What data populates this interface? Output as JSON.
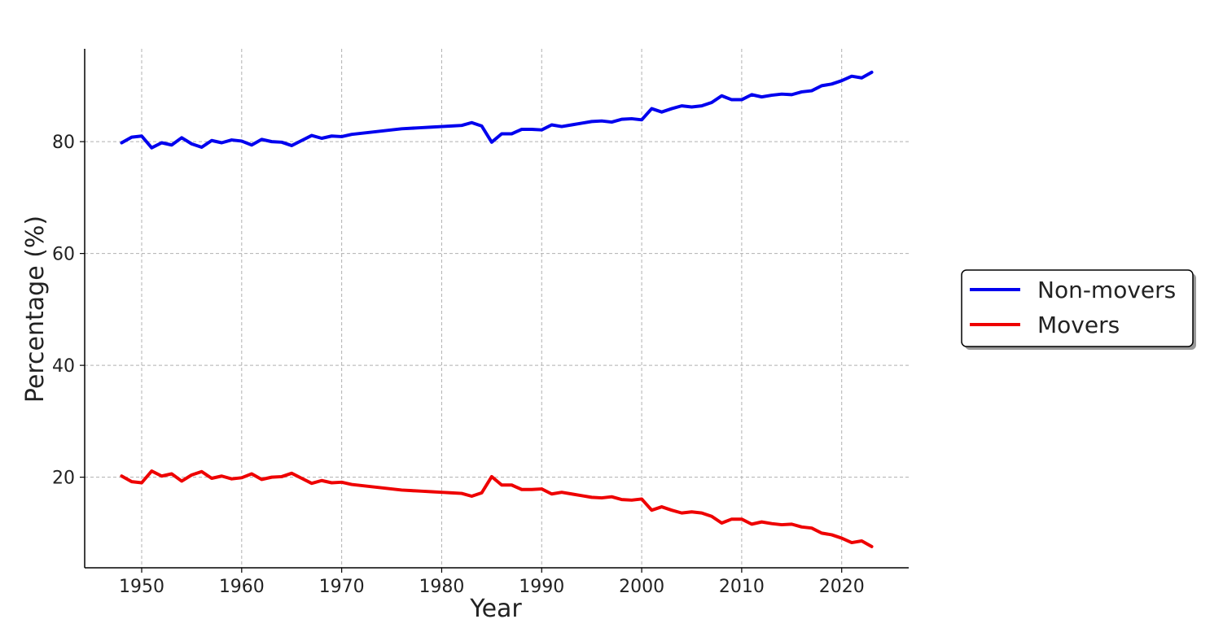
{
  "chart_data": {
    "type": "line",
    "title": "",
    "xlabel": "Year",
    "ylabel": "Percentage (%)",
    "xlim": [
      1944.3,
      2026.7
    ],
    "ylim": [
      3.8,
      96.6
    ],
    "xticks": [
      1950,
      1960,
      1970,
      1980,
      1990,
      2000,
      2010,
      2020
    ],
    "yticks": [
      20,
      40,
      60,
      80
    ],
    "grid": true,
    "legend_position": "center-right",
    "x": [
      1948,
      1949,
      1950,
      1951,
      1952,
      1953,
      1954,
      1955,
      1956,
      1957,
      1958,
      1959,
      1960,
      1961,
      1962,
      1963,
      1964,
      1965,
      1966,
      1967,
      1968,
      1969,
      1970,
      1971,
      1972,
      1973,
      1974,
      1975,
      1976,
      1977,
      1978,
      1979,
      1980,
      1981,
      1982,
      1983,
      1984,
      1985,
      1986,
      1987,
      1988,
      1989,
      1990,
      1991,
      1992,
      1993,
      1994,
      1995,
      1996,
      1997,
      1998,
      1999,
      2000,
      2001,
      2002,
      2003,
      2004,
      2005,
      2006,
      2007,
      2008,
      2009,
      2010,
      2011,
      2012,
      2013,
      2014,
      2015,
      2016,
      2017,
      2018,
      2019,
      2020,
      2021,
      2022,
      2023
    ],
    "series": [
      {
        "name": "Non-movers",
        "color": "#0000ee",
        "values": [
          79.8,
          80.8,
          81.0,
          78.9,
          79.8,
          79.4,
          80.7,
          79.6,
          79.0,
          80.2,
          79.8,
          80.3,
          80.1,
          79.4,
          80.4,
          80.0,
          79.9,
          79.3,
          80.2,
          81.1,
          80.6,
          81.0,
          80.9,
          81.3,
          81.5,
          81.7,
          81.9,
          82.1,
          82.3,
          82.4,
          82.5,
          82.6,
          82.7,
          82.8,
          82.9,
          83.4,
          82.8,
          79.9,
          81.4,
          81.4,
          82.2,
          82.2,
          82.1,
          83.0,
          82.7,
          83.0,
          83.3,
          83.6,
          83.7,
          83.5,
          84.0,
          84.1,
          83.9,
          85.9,
          85.3,
          85.9,
          86.4,
          86.2,
          86.4,
          87.0,
          88.2,
          87.5,
          87.5,
          88.4,
          88.0,
          88.3,
          88.5,
          88.4,
          88.9,
          89.1,
          90.0,
          90.3,
          90.9,
          91.7,
          91.4,
          92.4
        ]
      },
      {
        "name": "Movers",
        "color": "#ee0000",
        "values": [
          20.2,
          19.2,
          19.0,
          21.1,
          20.2,
          20.6,
          19.3,
          20.4,
          21.0,
          19.8,
          20.2,
          19.7,
          19.9,
          20.6,
          19.6,
          20.0,
          20.1,
          20.7,
          19.8,
          18.9,
          19.4,
          19.0,
          19.1,
          18.7,
          18.5,
          18.3,
          18.1,
          17.9,
          17.7,
          17.6,
          17.5,
          17.4,
          17.3,
          17.2,
          17.1,
          16.6,
          17.2,
          20.1,
          18.6,
          18.6,
          17.8,
          17.8,
          17.9,
          17.0,
          17.3,
          17.0,
          16.7,
          16.4,
          16.3,
          16.5,
          16.0,
          15.9,
          16.1,
          14.1,
          14.7,
          14.1,
          13.6,
          13.8,
          13.6,
          13.0,
          11.8,
          12.5,
          12.5,
          11.6,
          12.0,
          11.7,
          11.5,
          11.6,
          11.1,
          10.9,
          10.0,
          9.7,
          9.1,
          8.3,
          8.6,
          7.6
        ]
      }
    ]
  }
}
